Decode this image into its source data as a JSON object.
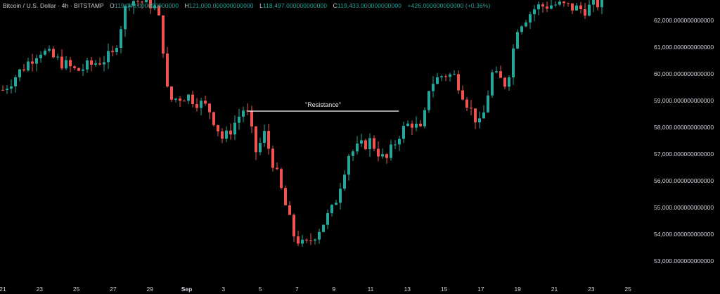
{
  "header": {
    "symbol": "Bitcoin / U.S. Dollar · 4h · BITSTAMP",
    "open_key": "O",
    "open_val": "119,040.000000000000",
    "high_key": "H",
    "high_val": "121,000.000000000000",
    "low_key": "L",
    "low_val": "118,497.000000000000",
    "close_key": "C",
    "close_val": "119,433.000000000000",
    "change": "+426.000000000000 (+0.36%)"
  },
  "colors": {
    "up": "#26a69a",
    "down": "#ef5350",
    "background": "#000000",
    "text": "#d1d4dc"
  },
  "chart_data": {
    "type": "candlestick",
    "ylim": [
      52600,
      63000
    ],
    "x_ticks": [
      "21",
      "23",
      "25",
      "27",
      "29",
      "Sep",
      "3",
      "5",
      "7",
      "9",
      "11",
      "13",
      "15",
      "17",
      "19",
      "21",
      "23",
      "25"
    ],
    "y_ticks": [
      {
        "value": 62000,
        "label": "62,000.000000000000"
      },
      {
        "value": 61000,
        "label": "61,000.000000000000"
      },
      {
        "value": 60000,
        "label": "60,000.000000000000"
      },
      {
        "value": 59000,
        "label": "59,000.000000000000"
      },
      {
        "value": 58000,
        "label": "58,000.000000000000"
      },
      {
        "value": 57000,
        "label": "57,000.000000000000"
      },
      {
        "value": 56000,
        "label": "56,000.000000000000"
      },
      {
        "value": 55000,
        "label": "55,000.000000000000"
      },
      {
        "value": 54000,
        "label": "54,000.000000000000"
      },
      {
        "value": 53000,
        "label": "53,000.000000000000"
      }
    ],
    "annotation": {
      "text": "\"Resistance\"",
      "level": 58550,
      "from_tick": "3",
      "to_tick": "13"
    },
    "path_points": [
      {
        "t": 0,
        "p": 59400
      },
      {
        "t": 1,
        "p": 60900
      },
      {
        "t": 2,
        "p": 60100
      },
      {
        "t": 3,
        "p": 60700
      },
      {
        "t": 3.4,
        "p": 62800
      },
      {
        "t": 4.1,
        "p": 62600
      },
      {
        "t": 4.3,
        "p": 61800
      },
      {
        "t": 4.5,
        "p": 59000
      },
      {
        "t": 5,
        "p": 59200
      },
      {
        "t": 5.6,
        "p": 58700
      },
      {
        "t": 6,
        "p": 57500
      },
      {
        "t": 6.6,
        "p": 58800
      },
      {
        "t": 6.9,
        "p": 57000
      },
      {
        "t": 7.1,
        "p": 57800
      },
      {
        "t": 7.5,
        "p": 56000
      },
      {
        "t": 7.9,
        "p": 54000
      },
      {
        "t": 8.2,
        "p": 53500
      },
      {
        "t": 8.6,
        "p": 54200
      },
      {
        "t": 9,
        "p": 55000
      },
      {
        "t": 9.4,
        "p": 57000
      },
      {
        "t": 10,
        "p": 57500
      },
      {
        "t": 10.4,
        "p": 56700
      },
      {
        "t": 10.8,
        "p": 57800
      },
      {
        "t": 11.1,
        "p": 58200
      },
      {
        "t": 11.4,
        "p": 57800
      },
      {
        "t": 11.6,
        "p": 59600
      },
      {
        "t": 12,
        "p": 60000
      },
      {
        "t": 12.3,
        "p": 59900
      },
      {
        "t": 12.7,
        "p": 58700
      },
      {
        "t": 13,
        "p": 58000
      },
      {
        "t": 13.3,
        "p": 60000
      },
      {
        "t": 13.7,
        "p": 59600
      },
      {
        "t": 14,
        "p": 61800
      },
      {
        "t": 14.5,
        "p": 62500
      },
      {
        "t": 15,
        "p": 62600
      },
      {
        "t": 15.8,
        "p": 62400
      },
      {
        "t": 16.3,
        "p": 62700
      }
    ]
  }
}
